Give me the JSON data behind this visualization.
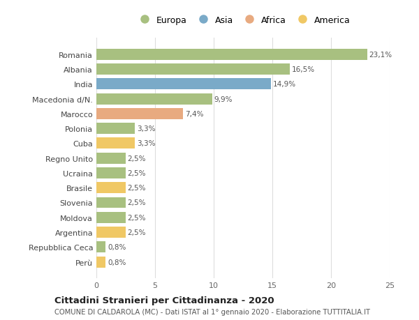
{
  "countries": [
    "Romania",
    "Albania",
    "India",
    "Macedonia d/N.",
    "Marocco",
    "Polonia",
    "Cuba",
    "Regno Unito",
    "Ucraina",
    "Brasile",
    "Slovenia",
    "Moldova",
    "Argentina",
    "Repubblica Ceca",
    "Perù"
  ],
  "values": [
    23.1,
    16.5,
    14.9,
    9.9,
    7.4,
    3.3,
    3.3,
    2.5,
    2.5,
    2.5,
    2.5,
    2.5,
    2.5,
    0.8,
    0.8
  ],
  "labels": [
    "23,1%",
    "16,5%",
    "14,9%",
    "9,9%",
    "7,4%",
    "3,3%",
    "3,3%",
    "2,5%",
    "2,5%",
    "2,5%",
    "2,5%",
    "2,5%",
    "2,5%",
    "0,8%",
    "0,8%"
  ],
  "continents": [
    "Europa",
    "Europa",
    "Asia",
    "Europa",
    "Africa",
    "Europa",
    "America",
    "Europa",
    "Europa",
    "America",
    "Europa",
    "Europa",
    "America",
    "Europa",
    "America"
  ],
  "continent_colors": {
    "Europa": "#a8c080",
    "Asia": "#7aaac8",
    "Africa": "#e8aa80",
    "America": "#f0c865"
  },
  "legend_items": [
    "Europa",
    "Asia",
    "Africa",
    "America"
  ],
  "legend_colors": [
    "#a8c080",
    "#7aaac8",
    "#e8aa80",
    "#f0c865"
  ],
  "xlim": [
    0,
    25
  ],
  "xticks": [
    0,
    5,
    10,
    15,
    20,
    25
  ],
  "title": "Cittadini Stranieri per Cittadinanza - 2020",
  "subtitle": "COMUNE DI CALDAROLA (MC) - Dati ISTAT al 1° gennaio 2020 - Elaborazione TUTTITALIA.IT",
  "bg_color": "#ffffff",
  "grid_color": "#dddddd",
  "bar_height": 0.75
}
